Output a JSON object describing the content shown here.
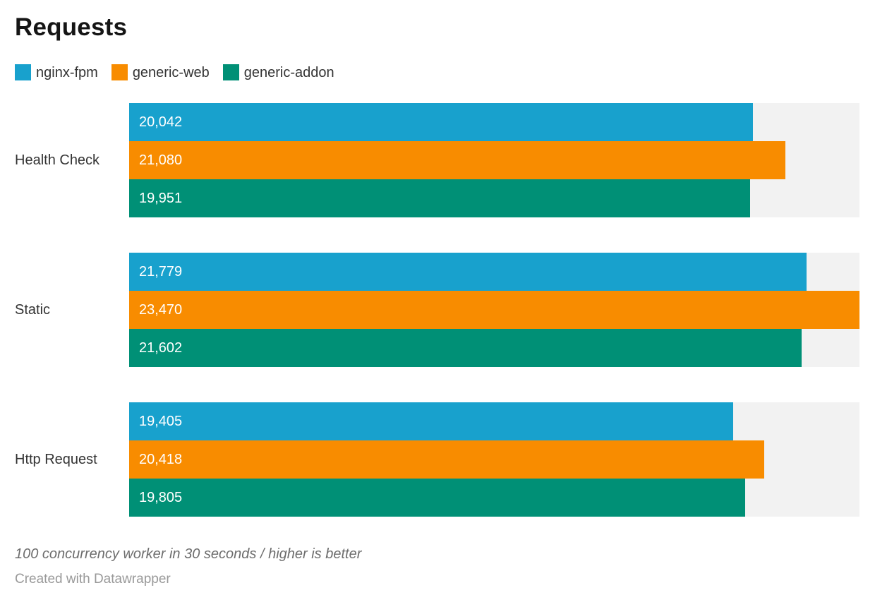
{
  "title": "Requests",
  "legend": [
    {
      "label": "nginx-fpm",
      "color": "#18a1cd"
    },
    {
      "label": "generic-web",
      "color": "#f88c00"
    },
    {
      "label": "generic-addon",
      "color": "#009076"
    }
  ],
  "chart_data": {
    "type": "bar",
    "orientation": "horizontal",
    "title": "Requests",
    "categories": [
      "Health Check",
      "Static",
      "Http Request"
    ],
    "series": [
      {
        "name": "nginx-fpm",
        "color": "#18a1cd",
        "values": [
          20042,
          21779,
          19405
        ],
        "labels": [
          "20,042",
          "21,779",
          "19,405"
        ]
      },
      {
        "name": "generic-web",
        "color": "#f88c00",
        "values": [
          21080,
          23470,
          20418
        ],
        "labels": [
          "21,080",
          "23,470",
          "20,418"
        ]
      },
      {
        "name": "generic-addon",
        "color": "#009076",
        "values": [
          19951,
          21602,
          19805
        ],
        "labels": [
          "19,951",
          "21,602",
          "19,805"
        ]
      }
    ],
    "xlim": [
      0,
      23470
    ],
    "xmax": 23470,
    "grid": false,
    "legend_position": "top",
    "track_color": "#f2f2f2",
    "value_label_color": "#ffffff"
  },
  "footer": {
    "note": "100 concurrency worker in 30 seconds / higher is better",
    "byline": "Created with Datawrapper"
  }
}
